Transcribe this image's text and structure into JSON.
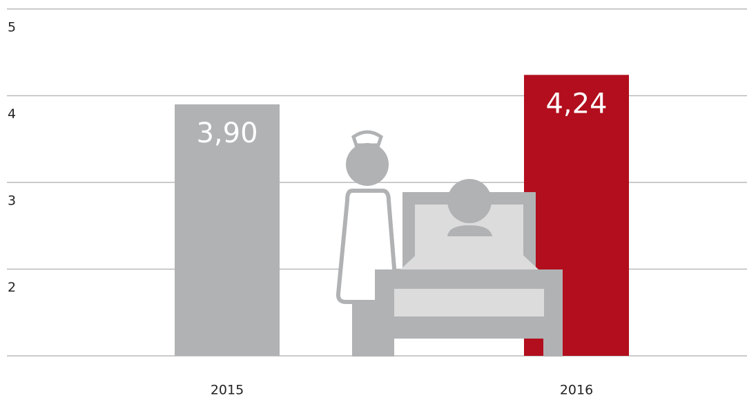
{
  "chart_data": {
    "type": "bar",
    "categories": [
      "2015",
      "2016"
    ],
    "values": [
      3.9,
      4.24
    ],
    "value_labels": [
      "3,90",
      "4,24"
    ],
    "colors": [
      "#b1b2b4",
      "#b20e1d"
    ],
    "ylim": [
      1,
      5
    ],
    "yticks": [
      2,
      3,
      4,
      5
    ],
    "grid": true
  }
}
